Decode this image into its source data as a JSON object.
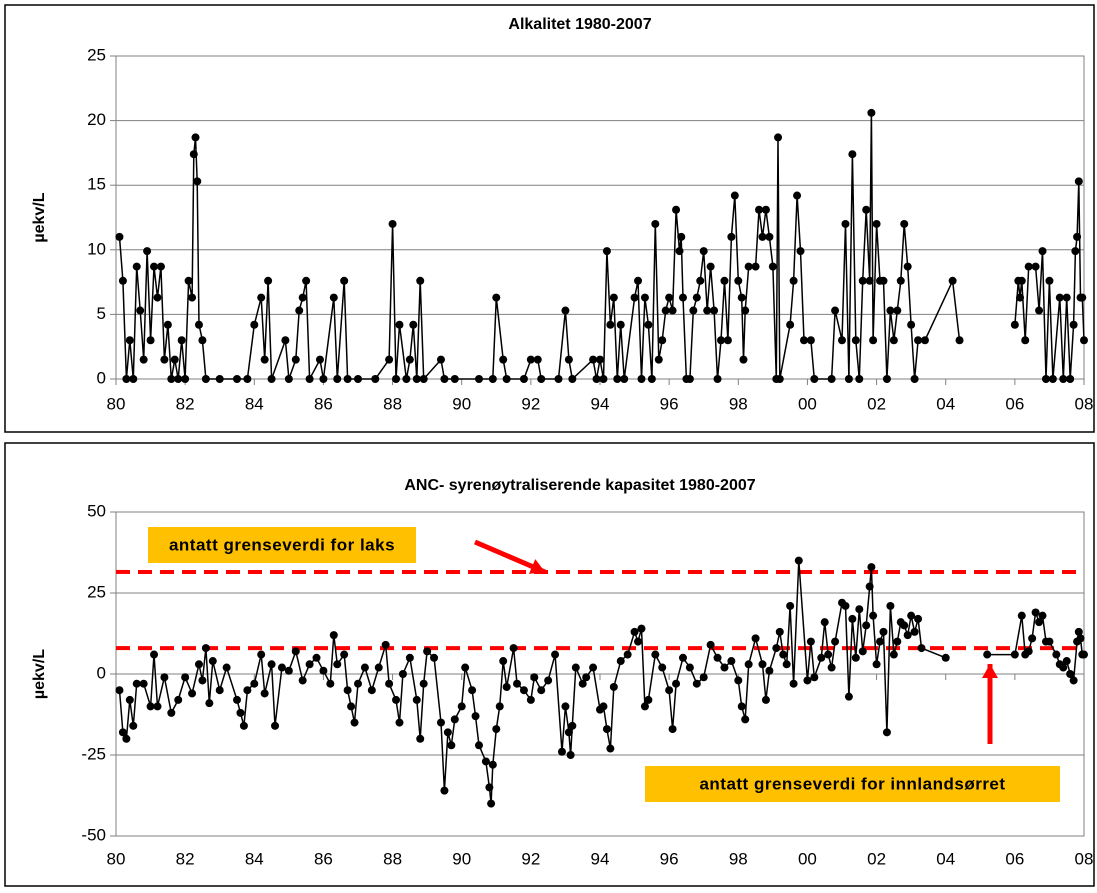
{
  "chart_data": [
    {
      "type": "line",
      "title": "Alkalitet 1980-2007",
      "ylabel": "µekv/L",
      "color": "#000000",
      "grid": true,
      "markers": true,
      "xlim": [
        1980,
        2008
      ],
      "xticks": [
        {
          "value": 1980,
          "label": "80"
        },
        {
          "value": 1982,
          "label": "82"
        },
        {
          "value": 1984,
          "label": "84"
        },
        {
          "value": 1986,
          "label": "86"
        },
        {
          "value": 1988,
          "label": "88"
        },
        {
          "value": 1990,
          "label": "90"
        },
        {
          "value": 1992,
          "label": "92"
        },
        {
          "value": 1994,
          "label": "94"
        },
        {
          "value": 1996,
          "label": "96"
        },
        {
          "value": 1998,
          "label": "98"
        },
        {
          "value": 2000,
          "label": "00"
        },
        {
          "value": 2002,
          "label": "02"
        },
        {
          "value": 2004,
          "label": "04"
        },
        {
          "value": 2006,
          "label": "06"
        },
        {
          "value": 2008,
          "label": "08"
        }
      ],
      "ylim": [
        0,
        25
      ],
      "yticks": [
        0,
        5,
        10,
        15,
        20,
        25
      ],
      "x": [
        1980.1,
        1980.2,
        1980.3,
        1980.4,
        1980.5,
        1980.6,
        1980.7,
        1980.8,
        1980.9,
        1981.0,
        1981.1,
        1981.2,
        1981.3,
        1981.4,
        1981.5,
        1981.6,
        1981.7,
        1981.8,
        1981.9,
        1982.0,
        1982.1,
        1982.2,
        1982.25,
        1982.3,
        1982.35,
        1982.4,
        1982.5,
        1982.6,
        1983.0,
        1983.5,
        1983.8,
        1984.0,
        1984.2,
        1984.3,
        1984.4,
        1984.5,
        1984.9,
        1985.0,
        1985.2,
        1985.3,
        1985.4,
        1985.5,
        1985.6,
        1985.9,
        1986.0,
        1986.3,
        1986.4,
        1986.6,
        1986.7,
        1987.0,
        1987.5,
        1987.9,
        1988.0,
        1988.1,
        1988.2,
        1988.4,
        1988.5,
        1988.6,
        1988.7,
        1988.8,
        1988.9,
        1989.4,
        1989.5,
        1989.8,
        1990.5,
        1990.9,
        1991.0,
        1991.2,
        1991.3,
        1991.8,
        1992.0,
        1992.2,
        1992.3,
        1992.8,
        1993.0,
        1993.1,
        1993.2,
        1993.8,
        1993.9,
        1994.0,
        1994.1,
        1994.2,
        1994.3,
        1994.4,
        1994.5,
        1994.6,
        1994.7,
        1995.0,
        1995.1,
        1995.2,
        1995.3,
        1995.4,
        1995.5,
        1995.6,
        1995.7,
        1995.8,
        1995.9,
        1996.0,
        1996.1,
        1996.2,
        1996.3,
        1996.35,
        1996.4,
        1996.5,
        1996.6,
        1996.7,
        1996.8,
        1996.9,
        1997.0,
        1997.1,
        1997.2,
        1997.3,
        1997.4,
        1997.5,
        1997.6,
        1997.7,
        1997.8,
        1997.9,
        1998.0,
        1998.1,
        1998.15,
        1998.2,
        1998.3,
        1998.5,
        1998.6,
        1998.7,
        1998.8,
        1998.9,
        1999.0,
        1999.1,
        1999.15,
        1999.2,
        1999.5,
        1999.6,
        1999.7,
        1999.8,
        1999.9,
        2000.1,
        2000.2,
        2000.7,
        2000.8,
        2001.0,
        2001.1,
        2001.2,
        2001.3,
        2001.4,
        2001.5,
        2001.6,
        2001.7,
        2001.8,
        2001.85,
        2001.9,
        2002.0,
        2002.1,
        2002.2,
        2002.3,
        2002.4,
        2002.5,
        2002.6,
        2002.7,
        2002.8,
        2002.9,
        2003.0,
        2003.1,
        2003.2,
        2003.4,
        2004.2,
        2004.4,
        2005.2,
        2006.0,
        2006.1,
        2006.15,
        2006.2,
        2006.3,
        2006.4,
        2006.6,
        2006.7,
        2006.8,
        2006.9,
        2007.0,
        2007.1,
        2007.3,
        2007.4,
        2007.5,
        2007.6,
        2007.7,
        2007.75,
        2007.8,
        2007.85,
        2007.9,
        2007.95,
        2008.0
      ],
      "values": [
        11,
        7.6,
        0,
        3,
        0,
        8.7,
        5.3,
        1.5,
        9.9,
        3,
        8.7,
        6.3,
        8.7,
        1.5,
        4.2,
        0,
        1.5,
        0,
        3,
        0,
        7.6,
        6.3,
        17.4,
        18.7,
        15.3,
        4.2,
        3,
        0,
        0,
        0,
        0,
        4.2,
        6.3,
        1.5,
        7.6,
        0,
        3,
        0,
        1.5,
        5.3,
        6.3,
        7.6,
        0,
        1.5,
        0,
        6.3,
        0,
        7.6,
        0,
        0,
        0,
        1.5,
        12,
        0,
        4.2,
        0,
        1.5,
        4.2,
        0,
        7.6,
        0,
        1.5,
        0,
        0,
        0,
        0,
        6.3,
        1.5,
        0,
        0,
        1.5,
        1.5,
        0,
        0,
        5.3,
        1.5,
        0,
        1.5,
        0,
        1.5,
        0,
        9.9,
        4.2,
        6.3,
        0,
        4.2,
        0,
        6.3,
        7.6,
        0,
        6.3,
        4.2,
        0,
        12,
        1.5,
        3,
        5.3,
        6.3,
        5.3,
        13.1,
        9.9,
        11,
        6.3,
        0,
        0,
        5.3,
        6.3,
        7.6,
        9.9,
        5.3,
        8.7,
        5.3,
        0,
        3,
        7.6,
        3,
        11,
        14.2,
        7.6,
        6.3,
        1.5,
        5.3,
        8.7,
        8.7,
        13.1,
        11,
        13.1,
        11,
        8.7,
        0,
        18.7,
        0,
        4.2,
        7.6,
        14.2,
        9.9,
        3,
        3,
        0,
        0,
        5.3,
        3,
        12,
        0,
        17.4,
        3,
        0,
        7.6,
        13.1,
        7.6,
        20.6,
        3,
        12,
        7.6,
        7.6,
        0,
        5.3,
        3,
        5.3,
        7.6,
        12,
        8.7,
        4.2,
        0,
        3,
        3,
        7.6,
        3,
        null,
        4.2,
        7.6,
        6.3,
        7.6,
        3,
        8.7,
        8.7,
        5.3,
        9.9,
        0,
        7.6,
        0,
        6.3,
        0,
        6.3,
        0,
        4.2,
        9.9,
        11,
        15.3,
        6.3,
        6.3,
        3
      ]
    },
    {
      "type": "line",
      "title": "ANC- syrenøytraliserende kapasitet 1980-2007",
      "ylabel": "µekv/L",
      "color": "#000000",
      "grid": true,
      "markers": true,
      "xlim": [
        1980,
        2008
      ],
      "xticks": [
        {
          "value": 1980,
          "label": "80"
        },
        {
          "value": 1982,
          "label": "82"
        },
        {
          "value": 1984,
          "label": "84"
        },
        {
          "value": 1986,
          "label": "86"
        },
        {
          "value": 1988,
          "label": "88"
        },
        {
          "value": 1990,
          "label": "90"
        },
        {
          "value": 1992,
          "label": "92"
        },
        {
          "value": 1994,
          "label": "94"
        },
        {
          "value": 1996,
          "label": "96"
        },
        {
          "value": 1998,
          "label": "98"
        },
        {
          "value": 2000,
          "label": "00"
        },
        {
          "value": 2002,
          "label": "02"
        },
        {
          "value": 2004,
          "label": "04"
        },
        {
          "value": 2006,
          "label": "06"
        },
        {
          "value": 2008,
          "label": "08"
        }
      ],
      "ylim": [
        -50,
        50
      ],
      "yticks": [
        -50,
        -25,
        0,
        25,
        50
      ],
      "reference_lines": [
        {
          "value": 31.5,
          "color": "#ff0000"
        },
        {
          "value": 8,
          "color": "#ff0000"
        }
      ],
      "annotations": [
        {
          "text": "antatt grenseverdi for laks",
          "color": "#ffc000"
        },
        {
          "text": "antatt grenseverdi for innlandsørret",
          "color": "#ffc000"
        }
      ],
      "x": [
        1980.1,
        1980.2,
        1980.3,
        1980.4,
        1980.5,
        1980.6,
        1980.8,
        1981.0,
        1981.1,
        1981.2,
        1981.4,
        1981.6,
        1981.8,
        1982.0,
        1982.2,
        1982.4,
        1982.5,
        1982.6,
        1982.7,
        1982.8,
        1983.0,
        1983.2,
        1983.5,
        1983.6,
        1983.7,
        1983.8,
        1984.0,
        1984.2,
        1984.3,
        1984.5,
        1984.6,
        1984.8,
        1985.0,
        1985.2,
        1985.4,
        1985.6,
        1985.8,
        1986.0,
        1986.2,
        1986.3,
        1986.4,
        1986.6,
        1986.7,
        1986.8,
        1986.9,
        1987.0,
        1987.2,
        1987.4,
        1987.6,
        1987.8,
        1987.9,
        1988.1,
        1988.2,
        1988.3,
        1988.5,
        1988.7,
        1988.8,
        1988.9,
        1989.0,
        1989.2,
        1989.4,
        1989.5,
        1989.6,
        1989.7,
        1989.8,
        1990.0,
        1990.1,
        1990.3,
        1990.4,
        1990.5,
        1990.7,
        1990.8,
        1990.85,
        1990.9,
        1991.0,
        1991.1,
        1991.2,
        1991.3,
        1991.5,
        1991.6,
        1991.8,
        1992.0,
        1992.1,
        1992.3,
        1992.5,
        1992.7,
        1992.9,
        1993.0,
        1993.1,
        1993.15,
        1993.2,
        1993.3,
        1993.5,
        1993.6,
        1993.8,
        1994.0,
        1994.1,
        1994.2,
        1994.3,
        1994.4,
        1994.6,
        1994.8,
        1995.0,
        1995.1,
        1995.2,
        1995.3,
        1995.4,
        1995.6,
        1995.8,
        1996.0,
        1996.1,
        1996.2,
        1996.4,
        1996.6,
        1996.8,
        1997.0,
        1997.2,
        1997.4,
        1997.6,
        1997.8,
        1998.0,
        1998.1,
        1998.2,
        1998.3,
        1998.5,
        1998.7,
        1998.8,
        1998.9,
        1999.1,
        1999.2,
        1999.3,
        1999.4,
        1999.5,
        1999.6,
        1999.75,
        2000.0,
        2000.1,
        2000.2,
        2000.4,
        2000.5,
        2000.6,
        2000.7,
        2000.8,
        2001.0,
        2001.1,
        2001.2,
        2001.3,
        2001.4,
        2001.5,
        2001.6,
        2001.7,
        2001.8,
        2001.85,
        2001.9,
        2002.0,
        2002.1,
        2002.2,
        2002.3,
        2002.4,
        2002.5,
        2002.6,
        2002.7,
        2002.8,
        2002.9,
        2003.0,
        2003.1,
        2003.2,
        2003.3,
        2004.0,
        2004.3,
        2005.2,
        2006.0,
        2006.2,
        2006.3,
        2006.4,
        2006.5,
        2006.6,
        2006.7,
        2006.8,
        2006.9,
        2007.0,
        2007.2,
        2007.3,
        2007.4,
        2007.5,
        2007.6,
        2007.7,
        2007.8,
        2007.85,
        2007.9,
        2007.95,
        2008.0
      ],
      "values": [
        -5,
        -18,
        -20,
        -8,
        -16,
        -3,
        -3,
        -10,
        6,
        -10,
        -1,
        -12,
        -8,
        -1,
        -6,
        3,
        -2,
        8,
        -9,
        4,
        -5,
        2,
        -8,
        -12,
        -16,
        -5,
        -3,
        6,
        -6,
        3,
        -16,
        2,
        1,
        7,
        -2,
        3,
        5,
        1,
        -3,
        12,
        3,
        6,
        -5,
        -10,
        -15,
        -3,
        2,
        -5,
        2,
        9,
        -3,
        -8,
        -15,
        0,
        5,
        -8,
        -20,
        -3,
        7,
        5,
        -15,
        -36,
        -18,
        -22,
        -14,
        -10,
        2,
        -5,
        -13,
        -22,
        -27,
        -35,
        -40,
        -28,
        -17,
        -10,
        4,
        -4,
        8,
        -3,
        -5,
        -8,
        -1,
        -5,
        -2,
        6,
        -24,
        -10,
        -18,
        -25,
        -16,
        2,
        -3,
        -1,
        2,
        -11,
        -10,
        -17,
        -23,
        -4,
        4,
        6,
        13,
        10,
        14,
        -10,
        -8,
        6,
        2,
        -5,
        -17,
        -3,
        5,
        2,
        -3,
        -1,
        9,
        5,
        2,
        4,
        -2,
        -10,
        -14,
        3,
        11,
        3,
        -8,
        1,
        8,
        13,
        6,
        3,
        21,
        -3,
        35,
        -2,
        10,
        -1,
        5,
        16,
        6,
        2,
        10,
        22,
        21,
        -7,
        17,
        5,
        20,
        7,
        15,
        27,
        33,
        18,
        3,
        10,
        13,
        -18,
        21,
        6,
        10,
        16,
        15,
        12,
        18,
        13,
        17,
        8,
        5,
        null,
        6,
        6,
        18,
        6,
        7,
        11,
        19,
        16,
        18,
        10,
        10,
        6,
        3,
        2,
        4,
        0,
        -2,
        10,
        13,
        11,
        6,
        6
      ]
    }
  ]
}
